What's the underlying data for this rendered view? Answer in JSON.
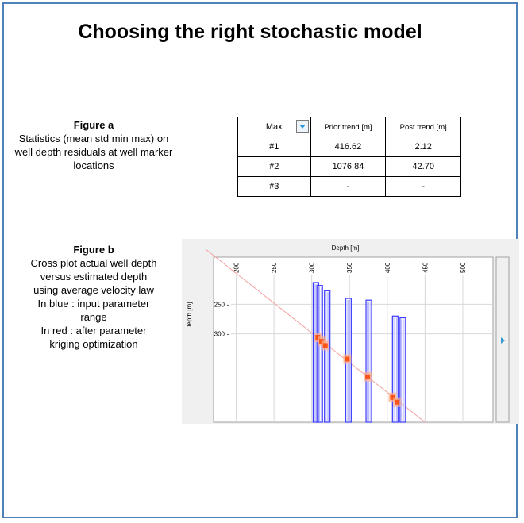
{
  "title": "Choosing the right stochastic model",
  "figure_a": {
    "heading": "Figure a",
    "text": "Statistics  (mean  std min max) on well depth residuals at well marker locations"
  },
  "figure_b": {
    "heading": "Figure b",
    "lines": [
      "Cross plot actual well depth",
      "versus estimated  depth",
      "using average velocity law",
      "In blue : input parameter",
      "range",
      "In red : after parameter",
      "kriging optimization"
    ]
  },
  "table": {
    "selector_value": "Max",
    "col_prior": "Prior trend [m]",
    "col_post": "Post trend [m]",
    "rows": [
      {
        "well": "#1",
        "prior": "416.62",
        "post": "2.12"
      },
      {
        "well": "#2",
        "prior": "1076.84",
        "post": "42.70"
      },
      {
        "well": "#3",
        "prior": "-",
        "post": "-"
      }
    ]
  },
  "chart_data": {
    "type": "scatter",
    "title": "",
    "xlabel": "Depth [m]",
    "ylabel": "Depth [m]",
    "x_ticks": [
      200,
      250,
      300,
      350,
      400,
      450,
      500
    ],
    "y_ticks": [
      250,
      300
    ],
    "xlim": [
      170,
      540
    ],
    "ylim": [
      170,
      450
    ],
    "grid": true,
    "reference_line": "y = x",
    "series": [
      {
        "name": "In blue : input parameter range",
        "color": "#3a3aff",
        "ranges": [
          {
            "x": 305,
            "y_min": 213,
            "y_max": 450
          },
          {
            "x": 310,
            "y_min": 218,
            "y_max": 450
          },
          {
            "x": 320,
            "y_min": 227,
            "y_max": 450
          },
          {
            "x": 348,
            "y_min": 240,
            "y_max": 450
          },
          {
            "x": 375,
            "y_min": 243,
            "y_max": 450
          },
          {
            "x": 410,
            "y_min": 270,
            "y_max": 450
          },
          {
            "x": 420,
            "y_min": 273,
            "y_max": 450
          }
        ]
      },
      {
        "name": "In red : after parameter kriging optimization",
        "color": "#ff4400",
        "points": [
          {
            "x": 308,
            "y": 306
          },
          {
            "x": 313,
            "y": 313
          },
          {
            "x": 318,
            "y": 320
          },
          {
            "x": 347,
            "y": 343
          },
          {
            "x": 374,
            "y": 373
          },
          {
            "x": 407,
            "y": 408
          },
          {
            "x": 413,
            "y": 416
          }
        ]
      }
    ],
    "colors": {
      "panel": "#f0f0f0",
      "plot_bg": "#ffffff",
      "grid": "#d8d8d8",
      "diag": "#f4a0a0"
    }
  }
}
